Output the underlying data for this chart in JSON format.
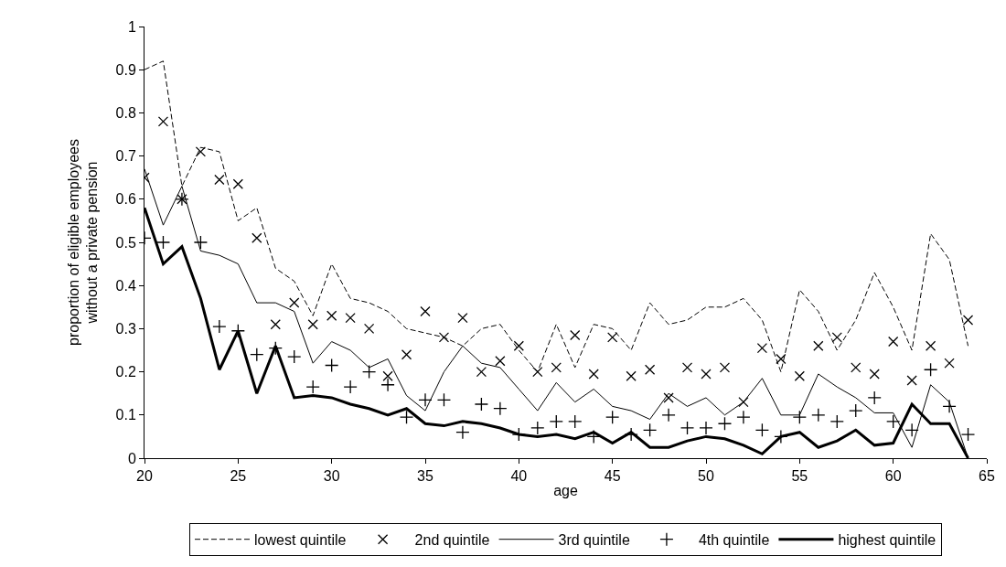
{
  "chart_data": {
    "type": "line",
    "xlabel": "age",
    "ylabel": "proportion of eligible employees without a private pension",
    "x": [
      20,
      21,
      22,
      23,
      24,
      25,
      26,
      27,
      28,
      29,
      30,
      31,
      32,
      33,
      34,
      35,
      36,
      37,
      38,
      39,
      40,
      41,
      42,
      43,
      44,
      45,
      46,
      47,
      48,
      49,
      50,
      51,
      52,
      53,
      54,
      55,
      56,
      57,
      58,
      59,
      60,
      61,
      62,
      63,
      64
    ],
    "series": [
      {
        "name": "lowest quintile",
        "color": "#000000",
        "line_style": "dashed",
        "values": [
          0.9,
          0.92,
          0.63,
          0.72,
          0.71,
          0.55,
          0.58,
          0.44,
          0.41,
          0.33,
          0.45,
          0.37,
          0.36,
          0.34,
          0.3,
          0.29,
          0.28,
          0.26,
          0.3,
          0.31,
          0.25,
          0.2,
          0.31,
          0.21,
          0.31,
          0.3,
          0.25,
          0.36,
          0.31,
          0.32,
          0.35,
          0.35,
          0.37,
          0.32,
          0.2,
          0.39,
          0.34,
          0.25,
          0.32,
          0.43,
          0.35,
          0.25,
          0.52,
          0.46,
          0.26
        ]
      },
      {
        "name": "2nd quintile",
        "type": "scatter",
        "color": "#000000",
        "marker": "x",
        "values": [
          0.65,
          0.78,
          0.6,
          0.71,
          0.645,
          0.635,
          0.51,
          0.31,
          0.36,
          0.31,
          0.33,
          0.325,
          0.3,
          0.19,
          0.24,
          0.34,
          0.28,
          0.325,
          0.2,
          0.225,
          0.26,
          0.2,
          0.21,
          0.285,
          0.195,
          0.28,
          0.19,
          0.205,
          0.14,
          0.21,
          0.195,
          0.21,
          0.13,
          0.255,
          0.23,
          0.19,
          0.26,
          0.28,
          0.21,
          0.195,
          0.27,
          0.18,
          0.26,
          0.22,
          0.32
        ]
      },
      {
        "name": "3rd quintile",
        "color": "#000000",
        "line_style": "solid",
        "values": [
          0.67,
          0.54,
          0.63,
          0.48,
          0.47,
          0.45,
          0.36,
          0.36,
          0.34,
          0.22,
          0.27,
          0.25,
          0.21,
          0.23,
          0.145,
          0.11,
          0.2,
          0.26,
          0.22,
          0.21,
          0.16,
          0.11,
          0.175,
          0.13,
          0.16,
          0.12,
          0.11,
          0.09,
          0.15,
          0.12,
          0.14,
          0.1,
          0.13,
          0.185,
          0.1,
          0.1,
          0.195,
          0.165,
          0.14,
          0.105,
          0.105,
          0.025,
          0.17,
          0.13,
          0
        ]
      },
      {
        "name": "4th quintile",
        "type": "scatter",
        "color": "#000000",
        "marker": "cross",
        "values": [
          0.51,
          0.5,
          0.6,
          0.5,
          0.305,
          0.295,
          0.24,
          0.255,
          0.235,
          0.165,
          0.215,
          0.165,
          0.2,
          0.17,
          0.095,
          0.135,
          0.135,
          0.06,
          0.125,
          0.115,
          0.055,
          0.07,
          0.085,
          0.085,
          0.05,
          0.095,
          0.055,
          0.065,
          0.1,
          0.07,
          0.07,
          0.08,
          0.095,
          0.065,
          0.05,
          0.095,
          0.1,
          0.085,
          0.11,
          0.14,
          0.085,
          0.065,
          0.205,
          0.12,
          0.055
        ]
      },
      {
        "name": "highest quintile",
        "color": "#000000",
        "line_style": "solid",
        "values": [
          0.58,
          0.45,
          0.49,
          0.37,
          0.205,
          0.295,
          0.15,
          0.26,
          0.14,
          0.145,
          0.14,
          0.125,
          0.115,
          0.1,
          0.115,
          0.08,
          0.075,
          0.085,
          0.08,
          0.07,
          0.055,
          0.05,
          0.055,
          0.045,
          0.06,
          0.035,
          0.06,
          0.025,
          0.025,
          0.04,
          0.05,
          0.045,
          0.03,
          0.01,
          0.05,
          0.06,
          0.025,
          0.04,
          0.065,
          0.03,
          0.035,
          0.125,
          0.08,
          0.08,
          0
        ]
      }
    ],
    "xlim": [
      20,
      65
    ],
    "xticks": [
      20,
      25,
      30,
      35,
      40,
      45,
      50,
      55,
      60,
      65
    ],
    "ylim": [
      0,
      1
    ],
    "yticks": [
      0,
      0.1,
      0.2,
      0.3,
      0.4,
      0.5,
      0.6,
      0.7,
      0.8,
      0.9,
      1
    ],
    "grid": false,
    "legend": "bottom"
  }
}
